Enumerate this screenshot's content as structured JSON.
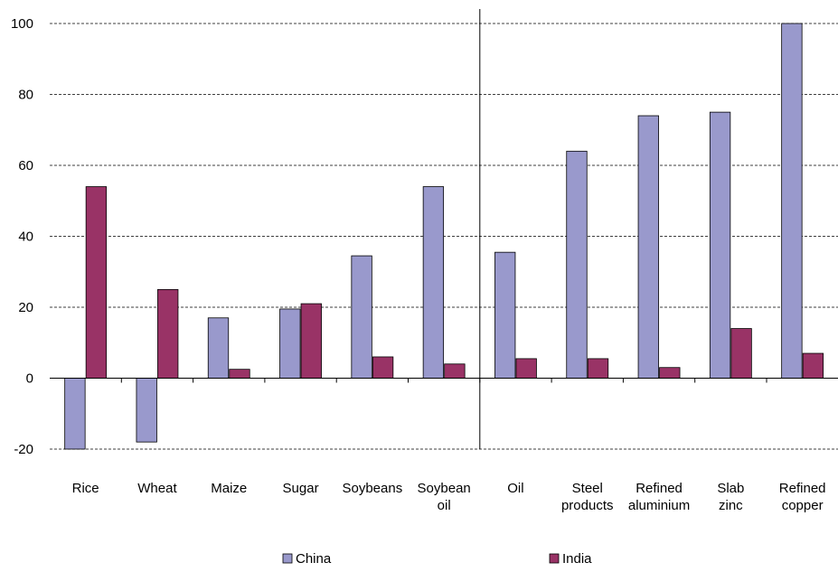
{
  "chart_data": {
    "type": "bar",
    "categories": [
      [
        "Rice"
      ],
      [
        "Wheat"
      ],
      [
        "Maize"
      ],
      [
        "Sugar"
      ],
      [
        "Soybeans"
      ],
      [
        "Soybean",
        "oil"
      ],
      [
        "Oil"
      ],
      [
        "Steel",
        "products"
      ],
      [
        "Refined",
        "aluminium"
      ],
      [
        "Slab",
        "zinc"
      ],
      [
        "Refined",
        "copper"
      ]
    ],
    "series": [
      {
        "name": "China",
        "color": "#9999cc",
        "values": [
          -20,
          -18,
          17,
          19.5,
          34.5,
          54,
          35.5,
          64,
          74,
          75,
          100
        ]
      },
      {
        "name": "India",
        "color": "#993366",
        "values": [
          54,
          25,
          2.5,
          21,
          6,
          4,
          5.5,
          5.5,
          3,
          14,
          7
        ]
      }
    ],
    "ylim": [
      -20,
      100
    ],
    "yticks": [
      -20,
      0,
      20,
      40,
      60,
      80,
      100
    ],
    "grid": true,
    "grid_style": "dashed",
    "divider_after_category": 6,
    "legend_position": "bottom",
    "title": "",
    "xlabel": "",
    "ylabel": ""
  }
}
